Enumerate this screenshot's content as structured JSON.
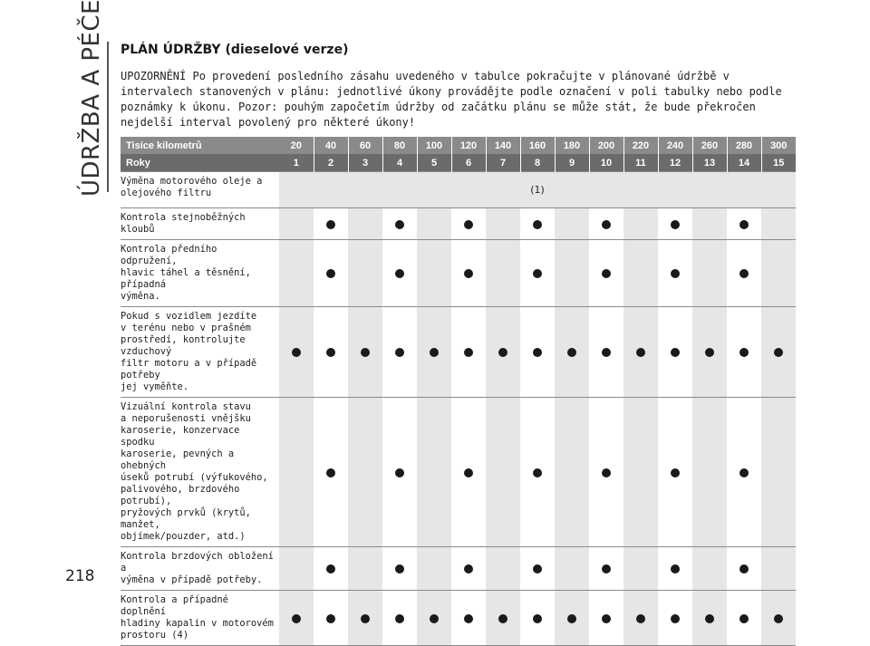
{
  "side_title": "ÚDRŽBA A PÉČE",
  "page_number": "218",
  "title": "PLÁN ÚDRŽBY (dieselové verze)",
  "warning": "UPOZORNĚNÍ Po provedení posledního zásahu uvedeného v tabulce pokračujte v plánované údržbě v intervalech stanovených v plánu: jednotlivé úkony provádějte podle označení v poli tabulky nebo podle poznámky k úkonu. Pozor: pouhým započetím údržby od začátku plánu se může stát, že bude překročen nejdelší interval povolený pro některé úkony!",
  "table": {
    "header_km_label": "Tisíce kilometrů",
    "header_years_label": "Roky",
    "km": [
      "20",
      "40",
      "60",
      "80",
      "100",
      "120",
      "140",
      "160",
      "180",
      "200",
      "220",
      "240",
      "260",
      "280",
      "300"
    ],
    "years": [
      "1",
      "2",
      "3",
      "4",
      "5",
      "6",
      "7",
      "8",
      "9",
      "10",
      "11",
      "12",
      "13",
      "14",
      "15"
    ],
    "rows": [
      {
        "label": "Výměna motorového oleje a\nolejového filtru",
        "note": "(1)",
        "marks": []
      },
      {
        "label": "Kontrola stejnoběžných kloubů",
        "marks": [
          2,
          4,
          6,
          8,
          10,
          12,
          14
        ]
      },
      {
        "label": "Kontrola předního odpružení,\nhlavic táhel a těsnění, případná\nvýměna.",
        "marks": [
          2,
          4,
          6,
          8,
          10,
          12,
          14
        ]
      },
      {
        "label": "Pokud s vozidlem jezdíte\nv terénu nebo v prašném\nprostředí, kontrolujte vzduchový\nfiltr motoru a v případě potřeby\njej vyměňte.",
        "marks": [
          1,
          2,
          3,
          4,
          5,
          6,
          7,
          8,
          9,
          10,
          11,
          12,
          13,
          14,
          15
        ]
      },
      {
        "label": "Vizuální kontrola stavu\na neporušenosti vnějšku\nkaroserie, konzervace spodku\nkaroserie, pevných a ohebných\núseků potrubí (výfukového,\npalivového, brzdového potrubí),\npryžových prvků (krytů, manžet,\nobjímek/pouzder, atd.)",
        "marks": [
          2,
          4,
          6,
          8,
          10,
          12,
          14
        ]
      },
      {
        "label": "Kontrola brzdových obložení a\nvýměna v případě potřeby.",
        "marks": [
          2,
          4,
          6,
          8,
          10,
          12,
          14
        ]
      },
      {
        "label": "Kontrola a případné doplnění\nhladiny kapalin v motorovém\nprostoru (4)",
        "marks": [
          1,
          2,
          3,
          4,
          5,
          6,
          7,
          8,
          9,
          10,
          11,
          12,
          13,
          14,
          15
        ]
      }
    ]
  },
  "colors": {
    "header_top": "#8a8a8a",
    "header_bottom": "#6b6b6b",
    "shade": "#e6e6e6",
    "dot": "#1a1a1a"
  }
}
